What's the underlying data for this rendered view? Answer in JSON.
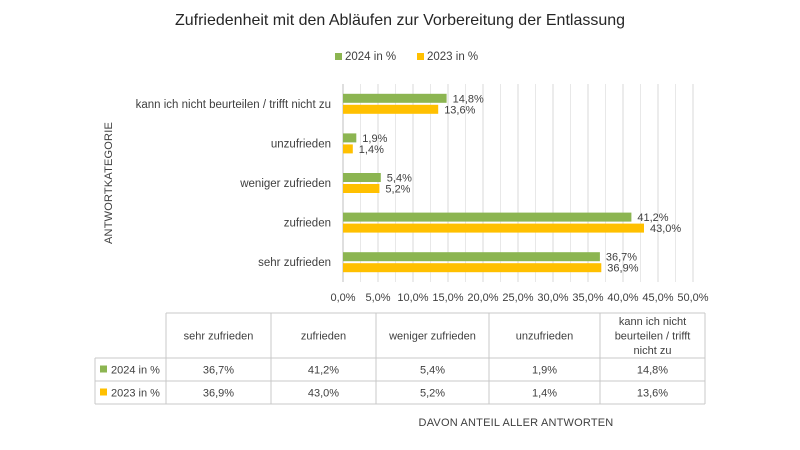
{
  "chart_data": {
    "type": "bar",
    "orientation": "horizontal",
    "title": "Zufriedenheit mit den Abläufen zur Vorbereitung der Entlassung",
    "ylabel": "ANTWORTKATEGORIE",
    "xlabel": "DAVON ANTEIL ALLER ANTWORTEN",
    "xlim": [
      0,
      50
    ],
    "xticks": [
      "0,0%",
      "5,0%",
      "10,0%",
      "15,0%",
      "20,0%",
      "25,0%",
      "30,0%",
      "35,0%",
      "40,0%",
      "45,0%",
      "50,0%"
    ],
    "legend_position": "top",
    "categories": [
      "kann ich nicht beurteilen / trifft nicht zu",
      "unzufrieden",
      "weniger zufrieden",
      "zufrieden",
      "sehr zufrieden"
    ],
    "series": [
      {
        "name": "2024 in %",
        "color": "#8cb551",
        "values": [
          14.8,
          1.9,
          5.4,
          41.2,
          36.7
        ],
        "labels": [
          "14,8%",
          "1,9%",
          "5,4%",
          "41,2%",
          "36,7%"
        ]
      },
      {
        "name": "2023 in %",
        "color": "#ffc000",
        "values": [
          13.6,
          1.4,
          5.2,
          43.0,
          36.9
        ],
        "labels": [
          "13,6%",
          "1,4%",
          "5,2%",
          "43,0%",
          "36,9%"
        ]
      }
    ],
    "table": {
      "headers": [
        "sehr zufrieden",
        "zufrieden",
        "weniger zufrieden",
        "unzufrieden",
        "kann ich nicht beurteilen / trifft nicht zu"
      ],
      "header_lines": [
        [
          "sehr zufrieden"
        ],
        [
          "zufrieden"
        ],
        [
          "weniger zufrieden"
        ],
        [
          "unzufrieden"
        ],
        [
          "kann ich nicht",
          "beurteilen / trifft",
          "nicht zu"
        ]
      ],
      "rows": [
        {
          "name": "2024 in %",
          "cells": [
            "36,7%",
            "41,2%",
            "5,4%",
            "1,9%",
            "14,8%"
          ]
        },
        {
          "name": "2023 in %",
          "cells": [
            "36,9%",
            "43,0%",
            "5,2%",
            "1,4%",
            "13,6%"
          ]
        }
      ]
    }
  }
}
